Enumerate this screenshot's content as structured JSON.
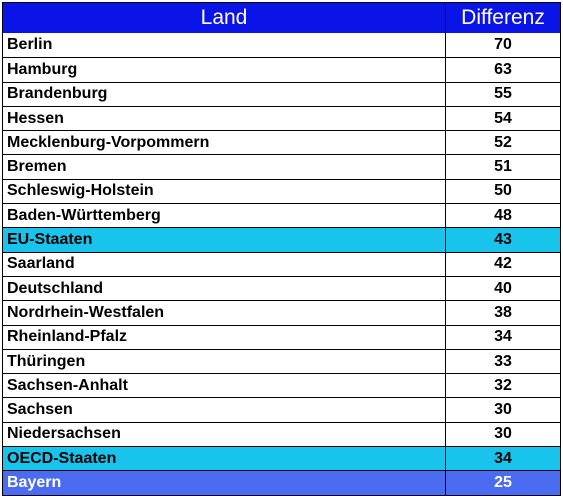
{
  "table": {
    "headers": {
      "land": "Land",
      "differenz": "Differenz"
    },
    "header_color": "#0a14e6",
    "highlight_colors": {
      "cyan": "#19c4ec",
      "blue": "#4b6cf0"
    },
    "rows": [
      {
        "land": "Berlin",
        "differenz": "70",
        "highlight": ""
      },
      {
        "land": "Hamburg",
        "differenz": "63",
        "highlight": ""
      },
      {
        "land": "Brandenburg",
        "differenz": "55",
        "highlight": ""
      },
      {
        "land": "Hessen",
        "differenz": "54",
        "highlight": ""
      },
      {
        "land": "Mecklenburg-Vorpommern",
        "differenz": "52",
        "highlight": ""
      },
      {
        "land": "Bremen",
        "differenz": "51",
        "highlight": ""
      },
      {
        "land": "Schleswig-Holstein",
        "differenz": "50",
        "highlight": ""
      },
      {
        "land": "Baden-Württemberg",
        "differenz": "48",
        "highlight": ""
      },
      {
        "land": "EU-Staaten",
        "differenz": "43",
        "highlight": "cyan"
      },
      {
        "land": "Saarland",
        "differenz": "42",
        "highlight": ""
      },
      {
        "land": "Deutschland",
        "differenz": "40",
        "highlight": ""
      },
      {
        "land": "Nordrhein-Westfalen",
        "differenz": "38",
        "highlight": ""
      },
      {
        "land": "Rheinland-Pfalz",
        "differenz": "34",
        "highlight": ""
      },
      {
        "land": "Thüringen",
        "differenz": "33",
        "highlight": ""
      },
      {
        "land": "Sachsen-Anhalt",
        "differenz": "32",
        "highlight": ""
      },
      {
        "land": "Sachsen",
        "differenz": "30",
        "highlight": ""
      },
      {
        "land": "Niedersachsen",
        "differenz": "30",
        "highlight": ""
      },
      {
        "land": "OECD-Staaten",
        "differenz": "34",
        "highlight": "cyan"
      },
      {
        "land": "Bayern",
        "differenz": "25",
        "highlight": "blue"
      }
    ]
  }
}
